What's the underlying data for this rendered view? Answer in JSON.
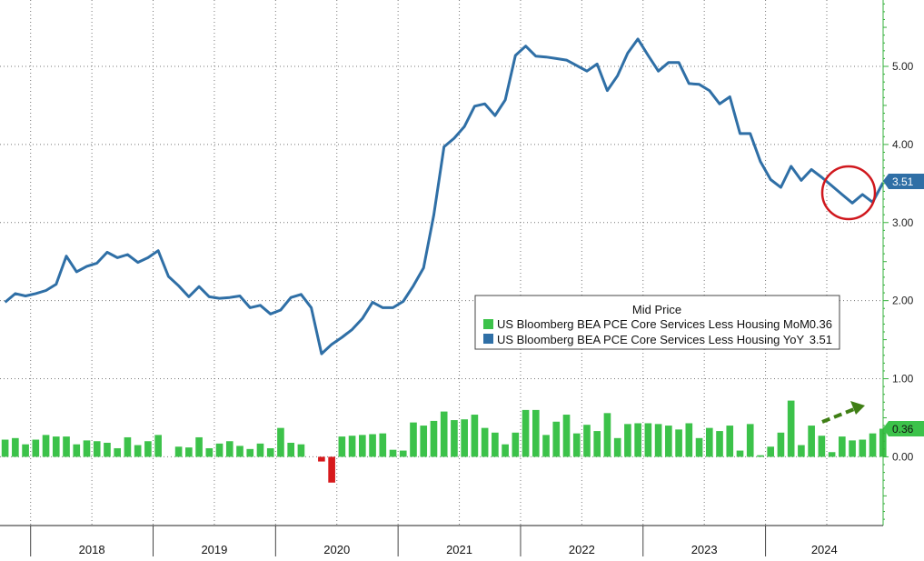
{
  "chart_data": {
    "type": "bar",
    "title": "",
    "legend": {
      "title": "Mid Price",
      "placement": "center-right",
      "entries": [
        {
          "label": "US Bloomberg BEA PCE Core Services Less Housing MoM",
          "value": "0.36",
          "color": "#3cc24a"
        },
        {
          "label": "US Bloomberg BEA PCE Core Services Less Housing YoY",
          "value": "3.51",
          "color": "#2f6fa6"
        }
      ]
    },
    "x_axis": {
      "start": 2017.75,
      "end": 2024.96,
      "year_labels": [
        "2018",
        "2019",
        "2020",
        "2021",
        "2022",
        "2023",
        "2024"
      ]
    },
    "y_axis": {
      "position": "right",
      "range": [
        -0.88,
        5.85
      ],
      "ticks": [
        "0.00",
        "1.00",
        "2.00",
        "3.00",
        "4.00",
        "5.00"
      ],
      "grid": true
    },
    "last_value_tags": {
      "yoy": "3.51",
      "mom": "0.36"
    },
    "colors": {
      "line": "#2f6fa6",
      "bar_positive": "#3cc24a",
      "bar_negative": "#d7191c",
      "axis": "#36b03c"
    },
    "series": [
      {
        "name": "US Bloomberg BEA PCE Core Services Less Housing MoM",
        "kind": "bar",
        "start_date": "2017-10",
        "values": [
          0.22,
          0.24,
          0.16,
          0.22,
          0.28,
          0.26,
          0.26,
          0.16,
          0.21,
          0.2,
          0.18,
          0.11,
          0.25,
          0.15,
          0.2,
          0.28,
          0.0,
          0.13,
          0.12,
          0.25,
          0.11,
          0.17,
          0.2,
          0.14,
          0.1,
          0.17,
          0.11,
          0.37,
          0.18,
          0.16,
          0.0,
          -0.06,
          -0.33,
          0.26,
          0.27,
          0.28,
          0.29,
          0.3,
          0.09,
          0.08,
          0.44,
          0.4,
          0.46,
          0.58,
          0.47,
          0.48,
          0.54,
          0.37,
          0.31,
          0.16,
          0.31,
          0.6,
          0.6,
          0.28,
          0.45,
          0.54,
          0.3,
          0.41,
          0.33,
          0.56,
          0.24,
          0.42,
          0.43,
          0.43,
          0.42,
          0.4,
          0.35,
          0.43,
          0.24,
          0.37,
          0.33,
          0.4,
          0.08,
          0.42,
          0.02,
          0.13,
          0.31,
          0.72,
          0.15,
          0.4,
          0.27,
          0.06,
          0.26,
          0.21,
          0.22,
          0.3,
          0.36
        ]
      },
      {
        "name": "US Bloomberg BEA PCE Core Services Less Housing YoY",
        "kind": "line",
        "start_date": "2017-10",
        "values": [
          1.98,
          2.09,
          2.06,
          2.09,
          2.13,
          2.21,
          2.57,
          2.37,
          2.44,
          2.48,
          2.62,
          2.55,
          2.59,
          2.49,
          2.55,
          2.64,
          2.31,
          2.19,
          2.05,
          2.18,
          2.05,
          2.03,
          2.04,
          2.06,
          1.91,
          1.94,
          1.83,
          1.88,
          2.04,
          2.08,
          1.91,
          1.32,
          1.44,
          1.53,
          1.63,
          1.77,
          1.98,
          1.91,
          1.91,
          1.99,
          2.19,
          2.42,
          3.1,
          3.97,
          4.08,
          4.23,
          4.49,
          4.52,
          4.37,
          4.57,
          5.14,
          5.26,
          5.13,
          5.12,
          5.1,
          5.08,
          5.01,
          4.94,
          5.03,
          4.69,
          4.88,
          5.17,
          5.35,
          5.14,
          4.94,
          5.05,
          5.05,
          4.78,
          4.77,
          4.69,
          4.52,
          4.61,
          4.14,
          4.14,
          3.78,
          3.55,
          3.45,
          3.72,
          3.54,
          3.68,
          3.58,
          3.47,
          3.36,
          3.25,
          3.36,
          3.26,
          3.51
        ]
      }
    ]
  }
}
